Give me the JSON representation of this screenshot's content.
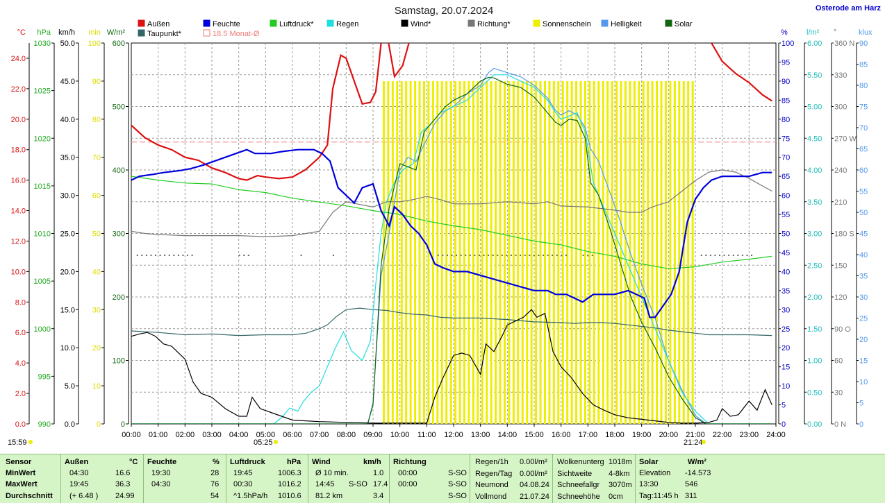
{
  "header": {
    "title": "Samstag, 20.07.2024",
    "location": "Osterode am Harz"
  },
  "legend": [
    {
      "label": "Außen",
      "color": "#dd1111"
    },
    {
      "label": "Feuchte",
      "color": "#0000dd"
    },
    {
      "label": "Luftdruck*",
      "color": "#22cc22"
    },
    {
      "label": "Regen",
      "color": "#22dddd"
    },
    {
      "label": "Wind*",
      "color": "#000000"
    },
    {
      "label": "Richtung*",
      "color": "#777777"
    },
    {
      "label": "Sonnenschein",
      "color": "#eeee00"
    },
    {
      "label": "Helligkeit",
      "color": "#5599ee"
    },
    {
      "label": "Solar",
      "color": "#116611"
    },
    {
      "label": "Taupunkt*",
      "color": "#336666"
    },
    {
      "label": "18.5 Monat-Ø",
      "color": "#ee7777"
    }
  ],
  "axes_left": [
    {
      "unit": "°C",
      "color": "#dd1111",
      "ticks": [
        "0.0",
        "2.0",
        "4.0",
        "6.0",
        "8.0",
        "10.0",
        "12.0",
        "14.0",
        "16.0",
        "18.0",
        "20.0",
        "22.0",
        "24.0"
      ],
      "min": 0,
      "max": 25
    },
    {
      "unit": "hPa",
      "color": "#22aa22",
      "ticks": [
        "990",
        "995",
        "1000",
        "1005",
        "1010",
        "1015",
        "1020",
        "1025",
        "1030"
      ],
      "min": 990,
      "max": 1030
    },
    {
      "unit": "km/h",
      "color": "#000000",
      "ticks": [
        "0.0",
        "5.0",
        "10.0",
        "15.0",
        "20.0",
        "25.0",
        "30.0",
        "35.0",
        "40.0",
        "45.0",
        "50.0"
      ],
      "min": 0,
      "max": 50
    },
    {
      "unit": "min",
      "color": "#dddd00",
      "ticks": [
        "0",
        "10",
        "20",
        "30",
        "40",
        "50",
        "60",
        "70",
        "80",
        "90",
        "100"
      ],
      "min": 0,
      "max": 100
    },
    {
      "unit": "W/m²",
      "color": "#116611",
      "ticks": [
        "0",
        "100",
        "200",
        "300",
        "400",
        "500",
        "600"
      ],
      "min": 0,
      "max": 600
    }
  ],
  "axes_right": [
    {
      "unit": "%",
      "color": "#0000cc",
      "ticks": [
        "0",
        "5",
        "10",
        "15",
        "20",
        "25",
        "30",
        "35",
        "40",
        "45",
        "50",
        "55",
        "60",
        "65",
        "70",
        "75",
        "80",
        "85",
        "90",
        "95",
        "100"
      ],
      "min": 0,
      "max": 100
    },
    {
      "unit": "l/m²",
      "color": "#22bbbb",
      "ticks": [
        "0.00",
        "0.50",
        "1.00",
        "1.50",
        "2.00",
        "2.50",
        "3.00",
        "3.50",
        "4.00",
        "4.50",
        "5.00",
        "5.50",
        "6.00"
      ],
      "min": 0,
      "max": 6
    },
    {
      "unit": "°",
      "color": "#777777",
      "ticks": [
        "0 N",
        "30",
        "60",
        "90 O",
        "120",
        "150",
        "180 S",
        "210",
        "240",
        "270 W",
        "300",
        "330",
        "360 N"
      ],
      "min": 0,
      "max": 360
    },
    {
      "unit": "klux",
      "color": "#5599ee",
      "ticks": [
        "0",
        "5",
        "10",
        "15",
        "20",
        "25",
        "30",
        "35",
        "40",
        "45",
        "50",
        "55",
        "60",
        "65",
        "70",
        "75",
        "80",
        "85",
        "90"
      ],
      "min": 0,
      "max": 90
    }
  ],
  "time_labels": [
    "00:00",
    "01:00",
    "02:00",
    "03:00",
    "04:00",
    "05:00",
    "06:00",
    "07:00",
    "08:00",
    "09:00",
    "10:00",
    "11:00",
    "12:00",
    "13:00",
    "14:00",
    "15:00",
    "16:00",
    "17:00",
    "18:00",
    "19:00",
    "20:00",
    "21:00",
    "22:00",
    "23:00",
    "24:00"
  ],
  "time_markers": {
    "top_left": "15:59",
    "sunrise": "05:25",
    "sunset": "21:24"
  },
  "chart_data": {
    "type": "line",
    "x_unit": "hours",
    "xlim": [
      0,
      24
    ],
    "monthly_mean_temp": 18.5,
    "series": [
      {
        "name": "Außen",
        "axis": "°C",
        "color": "#dd1111",
        "x": [
          0,
          0.5,
          1,
          1.5,
          2,
          2.5,
          3,
          3.5,
          4,
          4.3,
          4.7,
          5,
          5.5,
          6,
          6.5,
          7,
          7.3,
          7.5,
          7.8,
          8,
          8.3,
          8.6,
          8.9,
          9.1,
          9.3,
          9.5,
          9.8,
          10.1,
          10.4,
          10.7,
          21.3,
          21.6,
          22,
          22.5,
          23,
          23.5,
          23.85
        ],
        "y": [
          19.6,
          18.8,
          18.3,
          18.0,
          17.5,
          17.3,
          16.8,
          16.5,
          16.1,
          16.0,
          16.3,
          16.2,
          16.1,
          16.2,
          16.7,
          17.5,
          18.3,
          22.0,
          24.2,
          24.0,
          22.5,
          21.0,
          21.1,
          21.8,
          25.0,
          25.8,
          22.8,
          23.5,
          25.4,
          26.5,
          26.3,
          25.0,
          23.8,
          23.0,
          22.4,
          21.6,
          21.2
        ]
      },
      {
        "name": "Feuchte",
        "axis": "%",
        "color": "#0000dd",
        "x": [
          0,
          0.3,
          0.8,
          1.2,
          1.8,
          2.2,
          2.7,
          3.1,
          3.5,
          3.9,
          4.3,
          4.6,
          5.2,
          5.6,
          6.2,
          6.8,
          7.1,
          7.4,
          7.7,
          8.0,
          8.3,
          8.6,
          9.0,
          9.3,
          9.6,
          9.8,
          10.1,
          10.4,
          10.7,
          11.0,
          11.3,
          11.6,
          12.0,
          12.5,
          13.0,
          13.5,
          14.0,
          14.5,
          15.0,
          15.5,
          15.8,
          16.2,
          16.5,
          16.8,
          17.2,
          17.5,
          18.0,
          18.5,
          18.8,
          19.1,
          19.3,
          19.5,
          19.8,
          20.1,
          20.4,
          20.7,
          21.0,
          21.3,
          21.6,
          22.0,
          22.5,
          23.0,
          23.5,
          23.85
        ],
        "y": [
          64,
          65,
          65.5,
          66,
          66.5,
          67,
          68,
          69,
          70,
          71,
          72,
          71,
          71,
          71.5,
          72,
          72,
          71,
          69,
          62,
          60,
          58,
          62,
          63,
          56,
          52,
          57,
          55,
          52,
          50,
          47,
          42,
          41,
          40,
          40,
          39,
          38,
          37,
          36,
          35,
          35,
          34,
          34,
          33,
          32,
          34,
          34,
          34,
          35,
          34,
          33,
          28,
          28,
          31,
          34,
          40,
          53,
          59,
          62,
          64,
          65,
          65,
          65,
          66,
          66
        ]
      },
      {
        "name": "Luftdruck",
        "axis": "hPa",
        "color": "#22cc22",
        "x": [
          0,
          1,
          2,
          3,
          4,
          5,
          6,
          7,
          8,
          9,
          10,
          11,
          12,
          13,
          14,
          15,
          16,
          17,
          18,
          19,
          20,
          21,
          22,
          23,
          23.85
        ],
        "y": [
          1016.0,
          1015.6,
          1015.3,
          1015.2,
          1014.6,
          1014.3,
          1013.7,
          1013.3,
          1012.9,
          1012.4,
          1012.0,
          1011.3,
          1010.8,
          1010.4,
          1009.8,
          1009.2,
          1008.8,
          1008.1,
          1007.6,
          1006.8,
          1006.3,
          1006.5,
          1007.0,
          1007.3,
          1007.6
        ]
      },
      {
        "name": "Regen",
        "axis": "l/m²",
        "color": "#22dddd",
        "x": [
          0,
          5.3,
          5.6,
          5.9,
          6.2,
          6.4,
          6.7,
          7.0,
          7.3,
          7.6,
          7.9,
          8.2,
          8.6,
          8.9,
          9.1,
          9.3,
          9.5,
          9.8,
          10.1,
          10.5,
          10.8,
          11.1,
          11.5,
          12.0,
          12.5,
          13.0,
          13.5,
          14.0,
          14.5,
          15.0,
          15.5,
          15.8,
          16.0,
          16.3,
          16.6,
          16.9,
          17.2,
          17.5,
          18.0,
          18.5,
          19.0,
          19.5,
          20.0,
          20.5,
          21.0,
          21.5,
          23.85
        ],
        "y": [
          0,
          0,
          0.1,
          0.25,
          0.2,
          0.35,
          0.5,
          0.6,
          0.9,
          1.2,
          1.45,
          1.15,
          1.0,
          1.3,
          2.2,
          3.0,
          3.5,
          3.8,
          4.0,
          4.1,
          4.6,
          4.7,
          4.9,
          5.0,
          5.1,
          5.3,
          5.5,
          5.5,
          5.4,
          5.3,
          5.1,
          4.9,
          4.8,
          4.85,
          4.9,
          4.6,
          3.8,
          3.5,
          3.0,
          2.5,
          2.0,
          1.5,
          1.0,
          0.5,
          0.2,
          0,
          0
        ]
      },
      {
        "name": "Wind",
        "axis": "km/h",
        "color": "#000000",
        "x": [
          0,
          0.3,
          0.6,
          0.9,
          1.2,
          1.5,
          2.0,
          2.3,
          2.6,
          3.0,
          3.5,
          4.0,
          4.3,
          4.5,
          4.8,
          5.2,
          5.6,
          6.0,
          6.5,
          7.0,
          8.0,
          9.0,
          10.0,
          11.0,
          11.3,
          11.6,
          12.0,
          12.3,
          12.6,
          13.0,
          13.2,
          13.5,
          13.8,
          14.0,
          14.3,
          14.6,
          14.9,
          15.1,
          15.4,
          15.7,
          16.0,
          16.4,
          16.8,
          17.2,
          17.6,
          18.0,
          18.5,
          19.0,
          19.5,
          20.0,
          20.5,
          21.0,
          21.5,
          21.8,
          22.0,
          22.3,
          22.6,
          23.0,
          23.3,
          23.6,
          23.85
        ],
        "y": [
          11.5,
          11.8,
          12.0,
          11.5,
          10.5,
          10.2,
          8.5,
          5.5,
          4.0,
          3.5,
          2.0,
          1.0,
          1.0,
          3.5,
          2.0,
          1.5,
          1.0,
          0.5,
          0.4,
          0.3,
          0.2,
          0.1,
          0.1,
          0.1,
          3.5,
          6.0,
          9.0,
          9.3,
          9.0,
          6.5,
          10.5,
          9.5,
          11.5,
          13.0,
          13.5,
          14.0,
          15.0,
          14.0,
          14.5,
          9.5,
          7.5,
          6.0,
          4.0,
          2.5,
          1.8,
          1.2,
          0.8,
          0.6,
          0.4,
          0.2,
          0.1,
          0.1,
          0.2,
          0.5,
          2.0,
          1.0,
          1.2,
          3.0,
          1.8,
          4.5,
          2.5
        ]
      },
      {
        "name": "Richtung",
        "axis": "°",
        "color": "#777777",
        "x": [
          0,
          0.5,
          1,
          2,
          3,
          4,
          5,
          6,
          7,
          7.5,
          8,
          9,
          9.5,
          10,
          10.5,
          11,
          11.5,
          12,
          13,
          14,
          15,
          15.5,
          16,
          17,
          18,
          18.5,
          19,
          19.3,
          19.5,
          20,
          20.5,
          21,
          21.5,
          22,
          22.5,
          23,
          23.85
        ],
        "y": [
          182,
          180,
          179,
          178,
          178,
          178,
          177,
          178,
          182,
          200,
          210,
          205,
          210,
          210,
          212,
          215,
          212,
          208,
          208,
          210,
          208,
          210,
          206,
          205,
          202,
          200,
          200,
          204,
          206,
          210,
          220,
          230,
          238,
          240,
          238,
          232,
          220
        ]
      },
      {
        "name": "Helligkeit",
        "axis": "klux",
        "color": "#5599ee",
        "x": [
          0,
          8.8,
          9.0,
          9.3,
          9.6,
          10.0,
          10.3,
          10.6,
          10.9,
          11.3,
          11.7,
          12.0,
          12.5,
          13.0,
          13.3,
          13.5,
          14.0,
          14.5,
          15.0,
          15.5,
          15.8,
          16.0,
          16.3,
          16.6,
          16.9,
          17.1,
          17.4,
          17.8,
          18.2,
          18.6,
          19.0,
          19.5,
          20.0,
          20.5,
          21.0,
          21.4,
          23.85
        ],
        "y": [
          0,
          0,
          5,
          35,
          45,
          60,
          63,
          62,
          66,
          71,
          74,
          75,
          78,
          80,
          83,
          84,
          83,
          82,
          80,
          77,
          74,
          73,
          74,
          73,
          70,
          65,
          62,
          55,
          48,
          40,
          33,
          25,
          15,
          8,
          2,
          0,
          0
        ]
      },
      {
        "name": "Solar",
        "axis": "W/m²",
        "color": "#116611",
        "x": [
          0,
          8.8,
          9.0,
          9.3,
          9.6,
          10.0,
          10.3,
          10.6,
          10.9,
          11.3,
          11.7,
          12.0,
          12.5,
          13.0,
          13.3,
          13.5,
          14.0,
          14.5,
          15.0,
          15.5,
          15.8,
          16.0,
          16.3,
          16.6,
          16.9,
          17.1,
          17.4,
          17.8,
          18.2,
          18.6,
          19.0,
          19.5,
          20.0,
          20.5,
          21.0,
          21.4,
          23.85
        ],
        "y": [
          0,
          0,
          30,
          250,
          340,
          410,
          405,
          400,
          460,
          480,
          500,
          510,
          520,
          540,
          546,
          545,
          535,
          530,
          515,
          490,
          475,
          470,
          480,
          478,
          450,
          380,
          360,
          310,
          255,
          200,
          160,
          120,
          75,
          40,
          10,
          0,
          0
        ]
      },
      {
        "name": "Taupunkt",
        "axis": "klux_scaled",
        "color": "#336666",
        "x": [
          0,
          1,
          2,
          3,
          4,
          5,
          6,
          6.5,
          7,
          7.3,
          7.6,
          8,
          8.5,
          9,
          9.5,
          10,
          10.5,
          11,
          11.5,
          12,
          13,
          14,
          15,
          16,
          16.5,
          17,
          17.5,
          18,
          18.5,
          19,
          19.5,
          20,
          20.5,
          21,
          21.5,
          22,
          23,
          23.85
        ],
        "y": [
          12.2,
          12.0,
          11.7,
          11.8,
          11.6,
          11.7,
          11.7,
          11.9,
          12.5,
          13.0,
          14.0,
          15.0,
          15.2,
          15.0,
          14.9,
          14.6,
          14.4,
          14.3,
          14.0,
          13.9,
          13.9,
          13.7,
          13.4,
          13.3,
          13.2,
          13.3,
          13.3,
          13.2,
          13.0,
          12.8,
          12.6,
          12.3,
          12.1,
          11.9,
          11.7,
          11.7,
          11.7,
          11.6
        ]
      }
    ],
    "sunshine_bars": {
      "axis": "min",
      "x_start": 9.4,
      "x_end": 21.0,
      "value": 90
    }
  },
  "table": {
    "columns": [
      {
        "title": "Sensor",
        "unit": ""
      },
      {
        "title": "Außen",
        "unit": "°C"
      },
      {
        "title": "Feuchte",
        "unit": "%"
      },
      {
        "title": "Luftdruck",
        "unit": "hPa"
      },
      {
        "title": "Wind",
        "unit": "km/h"
      },
      {
        "title": "Richtung",
        "unit": ""
      }
    ],
    "rows": {
      "labels": [
        "MinWert",
        "MaxWert",
        "Durchschnitt"
      ],
      "aussen": [
        [
          "04:30",
          "16.6"
        ],
        [
          "19:45",
          "36.3"
        ],
        [
          "(+ 6.48 )",
          "24.99"
        ]
      ],
      "feuchte": [
        [
          "19:30",
          "28"
        ],
        [
          "04:30",
          "76"
        ],
        [
          "",
          "54"
        ]
      ],
      "luftdruck": [
        [
          "19:45",
          "1006.3"
        ],
        [
          "00:30",
          "1016.2"
        ],
        [
          "^1.5hPa/h",
          "1010.6"
        ]
      ],
      "wind": [
        [
          "Ø 10 min.",
          "",
          "1.0"
        ],
        [
          "14:45",
          "S-SO",
          "17.4"
        ],
        [
          "81.2 km",
          "",
          "3.4"
        ]
      ],
      "richtung": [
        [
          "00:00",
          "S-SO"
        ],
        [
          "00:00",
          "S-SO"
        ],
        [
          "",
          "S-SO"
        ]
      ]
    },
    "regen": [
      [
        "Regen/1h",
        "0.00l/m²"
      ],
      [
        "Regen/Tag",
        "0.00l/m²"
      ],
      [
        "Neumond",
        "04.08.24"
      ],
      [
        "Vollmond",
        "21.07.24"
      ]
    ],
    "wolken": [
      [
        "Wolkenunterg",
        "1018m"
      ],
      [
        "Sichtweite",
        "4-8km"
      ],
      [
        "Schneefallgr",
        "3070m"
      ],
      [
        "Schneehöhe",
        "0cm"
      ]
    ],
    "solar": {
      "title": "Solar",
      "unit": "W/m²",
      "rows": [
        [
          "Elevation",
          "-14.573"
        ],
        [
          "13:30",
          "546"
        ],
        [
          "Tag:11:45 h",
          "311"
        ]
      ]
    }
  }
}
